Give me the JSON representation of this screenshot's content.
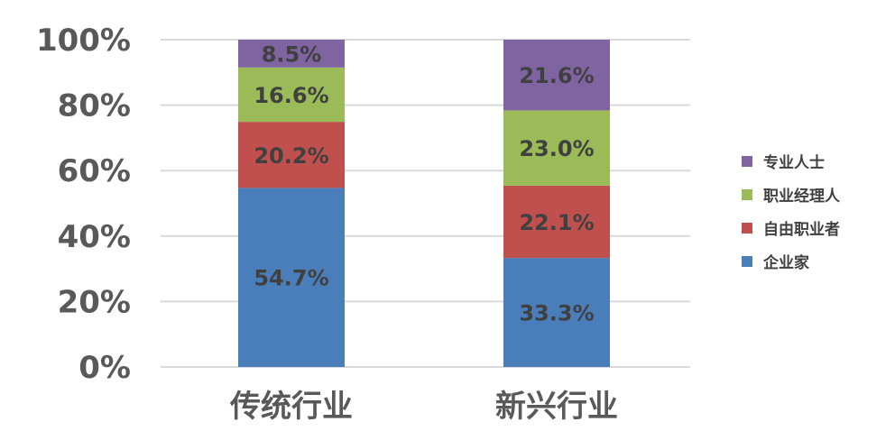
{
  "chart_data": {
    "type": "bar",
    "stacked": true,
    "categories": [
      "传统行业",
      "新兴行业"
    ],
    "series": [
      {
        "name": "企业家",
        "color": "#4a7ebb",
        "values": [
          54.7,
          33.3
        ],
        "labels": [
          "54.7%",
          "33.3%"
        ]
      },
      {
        "name": "自由职业者",
        "color": "#c0504d",
        "values": [
          20.2,
          22.1
        ],
        "labels": [
          "20.2%",
          "22.1%"
        ]
      },
      {
        "name": "职业经理人",
        "color": "#9bbb59",
        "values": [
          16.6,
          23.0
        ],
        "labels": [
          "16.6%",
          "23.0%"
        ]
      },
      {
        "name": "专业人士",
        "color": "#8064a2",
        "values": [
          8.5,
          21.6
        ],
        "labels": [
          "8.5%",
          "21.6%"
        ]
      }
    ],
    "ylim": [
      0,
      100
    ],
    "y_ticks": [
      0,
      20,
      40,
      60,
      80,
      100
    ],
    "y_tick_labels": [
      "0%",
      "20%",
      "40%",
      "60%",
      "80%",
      "100%"
    ],
    "legend_order": [
      3,
      2,
      1,
      0
    ],
    "legend_position": "right",
    "grid": true
  }
}
